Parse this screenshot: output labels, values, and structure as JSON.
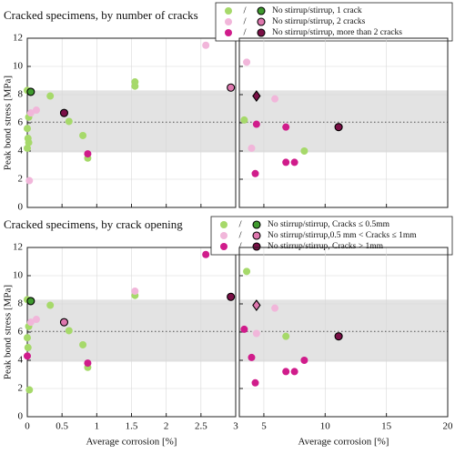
{
  "chart_data": [
    {
      "type": "scatter",
      "title": "Cracked specimens, by number of cracks",
      "ylabel": "Peak bond stress [MPa]",
      "xlim": [
        0,
        3
      ],
      "xticks": [
        0,
        0.5,
        1,
        1.5,
        2,
        2.5,
        3
      ],
      "ylim": [
        0,
        12
      ],
      "yticks": [
        0,
        2,
        4,
        6,
        8,
        10,
        12
      ],
      "grid": true,
      "show_xtick_labels": false,
      "show_ytick_labels": true,
      "band": [
        3.9,
        8.3
      ],
      "hline": 6.05,
      "legend_separator": "/",
      "legend": [
        {
          "name": "No stirrup/stirrup, 1 crack",
          "color": "#a6d96a",
          "stirrup_color": "#3f9a2e"
        },
        {
          "name": "No stirrup/stirrup, 2 cracks",
          "color": "#f1b6da",
          "stirrup_color": "#de77ae"
        },
        {
          "name": "No stirrup/stirrup, more than 2 cracks",
          "color": "#d01c8b",
          "stirrup_color": "#7a0f46"
        }
      ],
      "series": [
        {
          "color": "#a6d96a",
          "edge": false,
          "shape": "circle",
          "x": [
            0,
            0.02,
            0,
            0.01,
            0.02,
            0,
            0.33,
            0.6,
            0.8,
            0.87,
            1.55,
            1.55
          ],
          "values": [
            8.3,
            6.4,
            5.6,
            4.9,
            4.6,
            4.2,
            7.9,
            6.1,
            5.1,
            3.5,
            8.9,
            8.6
          ]
        },
        {
          "color": "#3f9a2e",
          "edge": true,
          "shape": "circle",
          "x": [
            0.05
          ],
          "values": [
            8.2
          ]
        },
        {
          "color": "#f1b6da",
          "edge": false,
          "shape": "circle",
          "x": [
            0.03,
            0.05,
            0.13,
            2.57
          ],
          "values": [
            1.9,
            6.7,
            6.9,
            11.5
          ]
        },
        {
          "color": "#de77ae",
          "edge": true,
          "shape": "circle",
          "x": [
            2.93
          ],
          "values": [
            8.5
          ]
        },
        {
          "color": "#d01c8b",
          "edge": false,
          "shape": "circle",
          "x": [
            0.87
          ],
          "values": [
            3.8
          ]
        },
        {
          "color": "#7a0f46",
          "edge": true,
          "shape": "circle",
          "x": [
            0.53
          ],
          "values": [
            6.7
          ]
        }
      ]
    },
    {
      "type": "scatter",
      "xlim": [
        3,
        20
      ],
      "xticks": [
        5,
        10,
        15,
        20
      ],
      "ylim": [
        0,
        12
      ],
      "yticks": [
        0,
        2,
        4,
        6,
        8,
        10,
        12
      ],
      "grid": true,
      "show_xtick_labels": false,
      "show_ytick_labels": false,
      "band": [
        3.9,
        8.3
      ],
      "hline": 6.05,
      "series": [
        {
          "color": "#a6d96a",
          "edge": false,
          "shape": "circle",
          "x": [
            3.4,
            8.3
          ],
          "values": [
            6.2,
            4.0
          ]
        },
        {
          "color": "#f1b6da",
          "edge": false,
          "shape": "circle",
          "x": [
            3.6,
            4.0,
            5.9
          ],
          "values": [
            10.3,
            4.2,
            7.7
          ]
        },
        {
          "color": "#d01c8b",
          "edge": false,
          "shape": "circle",
          "x": [
            4.4,
            4.3,
            6.8,
            6.8,
            7.5
          ],
          "values": [
            5.9,
            2.4,
            5.7,
            3.2,
            3.2
          ]
        },
        {
          "color": "#7a0f46",
          "edge": true,
          "shape": "circle",
          "x": [
            11.1
          ],
          "values": [
            5.7
          ]
        },
        {
          "color": "#7a0f46",
          "edge": true,
          "shape": "diamond",
          "x": [
            4.4
          ],
          "values": [
            7.9
          ]
        }
      ]
    },
    {
      "type": "scatter",
      "title": "Cracked specimens, by crack opening",
      "ylabel": "Peak bond stress [MPa]",
      "xlabel": "Average corrosion [%]",
      "xlim": [
        0,
        3
      ],
      "xticks": [
        0,
        0.5,
        1,
        1.5,
        2,
        2.5,
        3
      ],
      "ylim": [
        0,
        12
      ],
      "yticks": [
        0,
        2,
        4,
        6,
        8,
        10,
        12
      ],
      "grid": true,
      "show_xtick_labels": true,
      "show_ytick_labels": true,
      "band": [
        3.9,
        8.3
      ],
      "hline": 6.05,
      "legend_separator": "/",
      "legend": [
        {
          "name": "No stirrup/stirrup, Cracks ≤ 0.5mm",
          "color": "#a6d96a",
          "stirrup_color": "#3f9a2e"
        },
        {
          "name": "No stirrup/stirrup,0.5 mm < Cracks ≤ 1mm",
          "color": "#f1b6da",
          "stirrup_color": "#de77ae"
        },
        {
          "name": "No stirrup/stirrup, Cracks > 1mm",
          "color": "#d01c8b",
          "stirrup_color": "#7a0f46"
        }
      ],
      "series": [
        {
          "color": "#a6d96a",
          "edge": false,
          "shape": "circle",
          "x": [
            0,
            0.02,
            0,
            0.01,
            0.03,
            0.33,
            0.6,
            0.8,
            0.87,
            1.55
          ],
          "values": [
            8.3,
            6.4,
            5.6,
            4.9,
            1.9,
            7.9,
            6.1,
            5.1,
            3.5,
            8.6
          ]
        },
        {
          "color": "#3f9a2e",
          "edge": true,
          "shape": "circle",
          "x": [
            0.05
          ],
          "values": [
            8.2
          ]
        },
        {
          "color": "#f1b6da",
          "edge": false,
          "shape": "circle",
          "x": [
            0.05,
            0.13,
            1.55
          ],
          "values": [
            6.7,
            6.9,
            8.9
          ]
        },
        {
          "color": "#de77ae",
          "edge": true,
          "shape": "circle",
          "x": [
            0.53
          ],
          "values": [
            6.7
          ]
        },
        {
          "color": "#d01c8b",
          "edge": false,
          "shape": "circle",
          "x": [
            0,
            0.87,
            2.57
          ],
          "values": [
            4.3,
            3.8,
            11.5
          ]
        },
        {
          "color": "#7a0f46",
          "edge": true,
          "shape": "circle",
          "x": [
            2.93
          ],
          "values": [
            8.5
          ]
        }
      ]
    },
    {
      "type": "scatter",
      "xlabel": "Average corrosion [%]",
      "xlim": [
        3,
        20
      ],
      "xticks": [
        5,
        10,
        15,
        20
      ],
      "ylim": [
        0,
        12
      ],
      "yticks": [
        0,
        2,
        4,
        6,
        8,
        10,
        12
      ],
      "grid": true,
      "show_xtick_labels": true,
      "show_ytick_labels": false,
      "band": [
        3.9,
        8.3
      ],
      "hline": 6.05,
      "series": [
        {
          "color": "#a6d96a",
          "edge": false,
          "shape": "circle",
          "x": [
            3.6,
            6.8
          ],
          "values": [
            10.3,
            5.7
          ]
        },
        {
          "color": "#f1b6da",
          "edge": false,
          "shape": "circle",
          "x": [
            4.4,
            5.9
          ],
          "values": [
            5.9,
            7.7
          ]
        },
        {
          "color": "#de77ae",
          "edge": true,
          "shape": "diamond",
          "x": [
            4.4
          ],
          "values": [
            7.9
          ]
        },
        {
          "color": "#d01c8b",
          "edge": false,
          "shape": "circle",
          "x": [
            3.4,
            4.0,
            4.3,
            6.8,
            7.5,
            8.3
          ],
          "values": [
            6.2,
            4.2,
            2.4,
            3.2,
            3.2,
            4.0
          ]
        },
        {
          "color": "#7a0f46",
          "edge": true,
          "shape": "circle",
          "x": [
            11.1
          ],
          "values": [
            5.7
          ]
        }
      ]
    }
  ]
}
